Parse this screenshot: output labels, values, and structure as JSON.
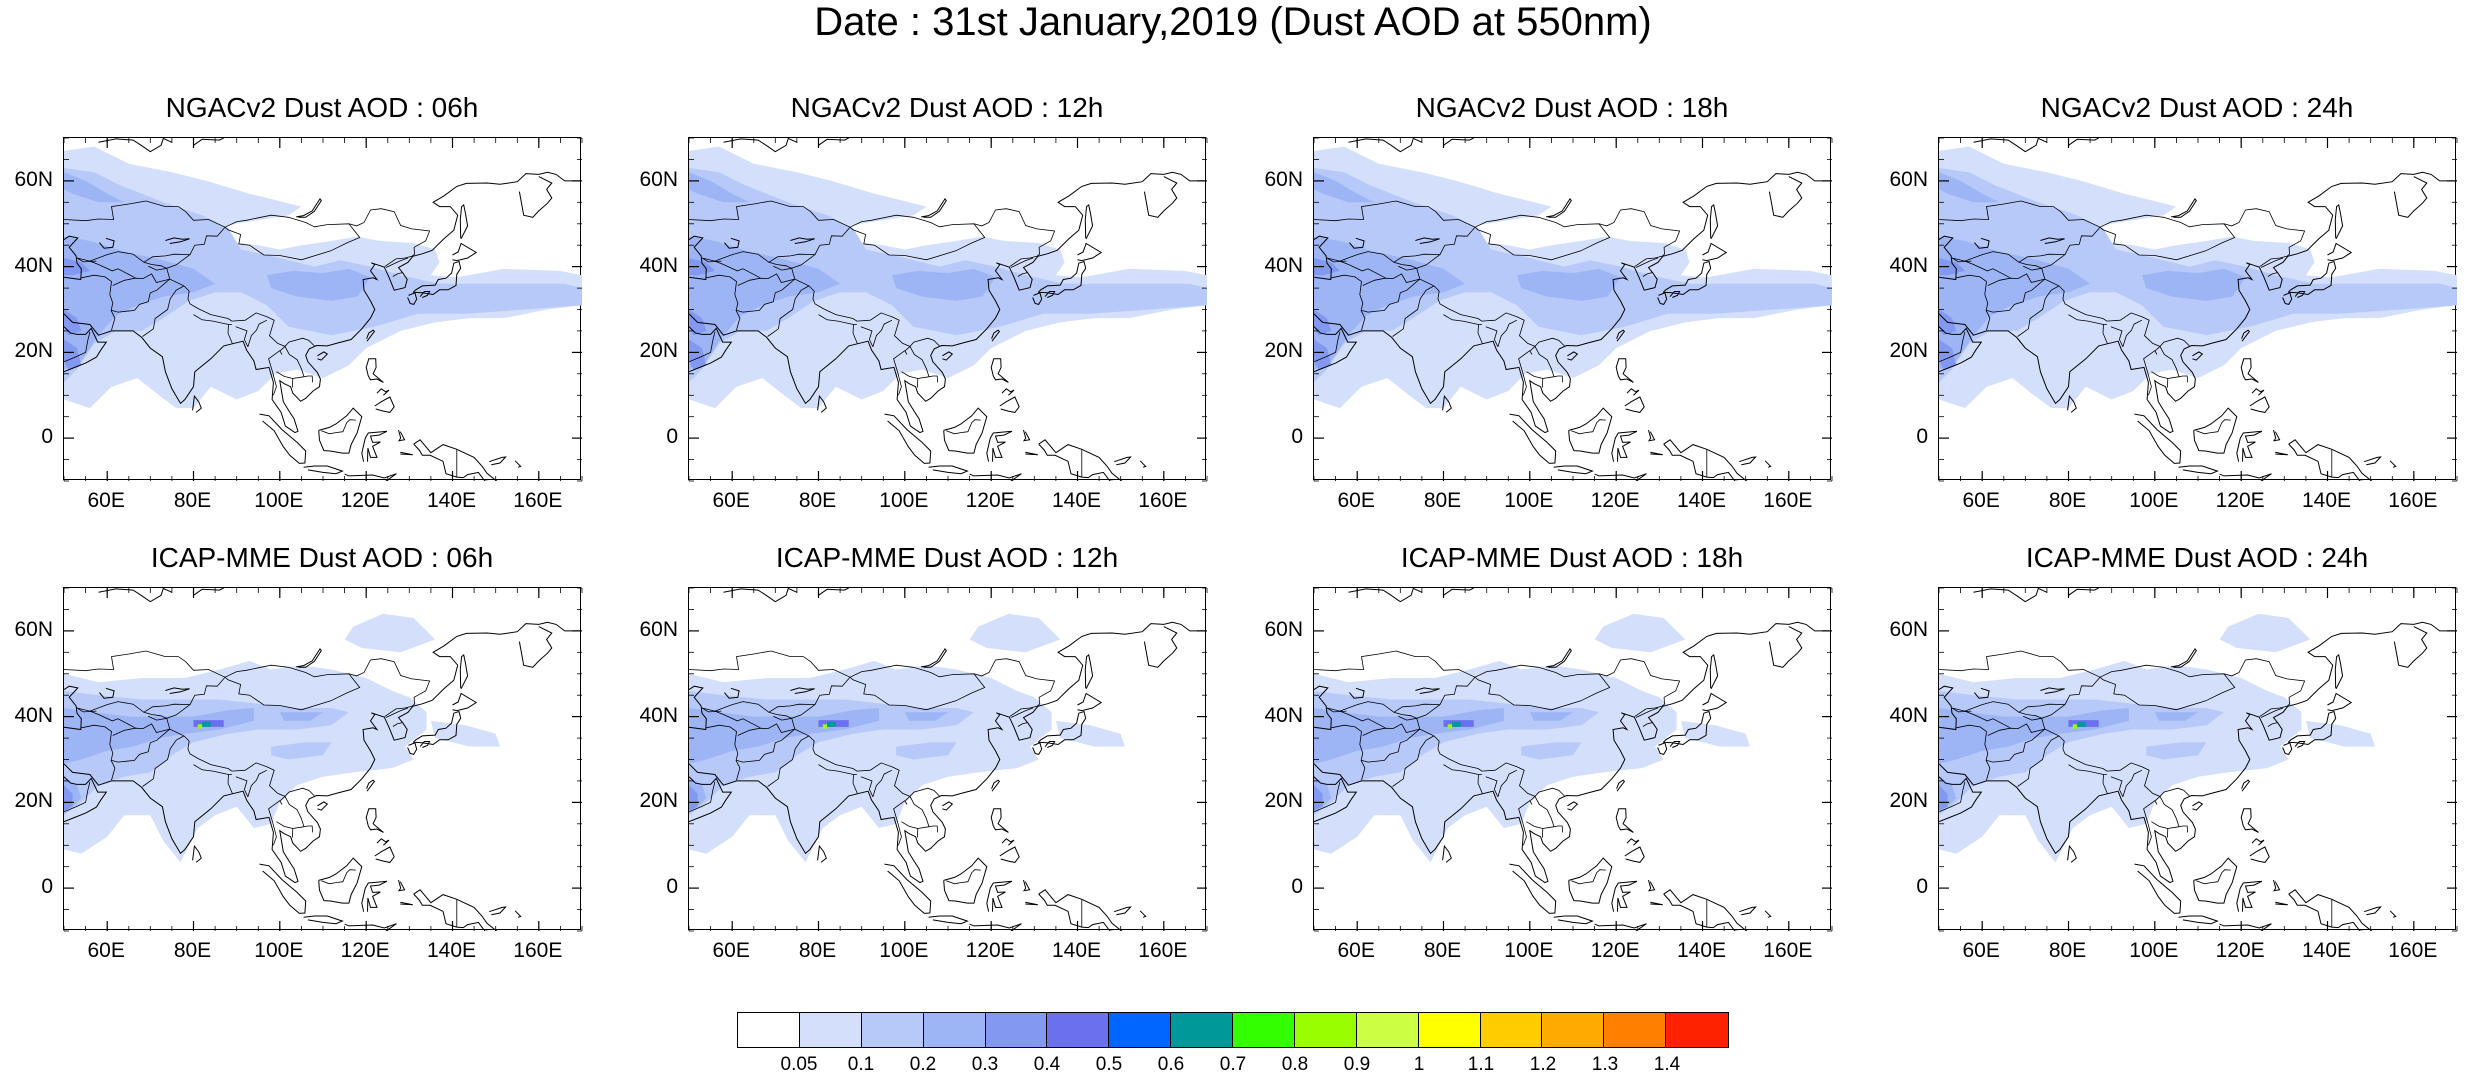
{
  "title": "Date : 31st January,2019 (Dust AOD at 550nm)",
  "panels": [
    {
      "title": "NGACv2 Dust AOD : 06h",
      "model": "ngac",
      "hour": "06"
    },
    {
      "title": "NGACv2 Dust AOD : 12h",
      "model": "ngac",
      "hour": "12"
    },
    {
      "title": "NGACv2 Dust AOD : 18h",
      "model": "ngac",
      "hour": "18"
    },
    {
      "title": "NGACv2 Dust AOD : 24h",
      "model": "ngac",
      "hour": "24"
    },
    {
      "title": "ICAP-MME Dust AOD : 06h",
      "model": "icap",
      "hour": "06"
    },
    {
      "title": "ICAP-MME Dust AOD : 12h",
      "model": "icap",
      "hour": "12"
    },
    {
      "title": "ICAP-MME Dust AOD : 18h",
      "model": "icap",
      "hour": "18"
    },
    {
      "title": "ICAP-MME Dust AOD : 24h",
      "model": "icap",
      "hour": "24"
    }
  ],
  "map": {
    "lon_range": [
      50,
      170
    ],
    "lat_range": [
      -10,
      70
    ],
    "x_ticks": [
      "60E",
      "80E",
      "100E",
      "120E",
      "140E",
      "160E"
    ],
    "x_tick_values": [
      60,
      80,
      100,
      120,
      140,
      160
    ],
    "y_ticks": [
      "0",
      "20N",
      "40N",
      "60N"
    ],
    "y_tick_values": [
      0,
      20,
      40,
      60
    ]
  },
  "colorbar": {
    "colors": [
      "#ffffff",
      "#d4e0fb",
      "#b7c9f8",
      "#9db5f5",
      "#8398f1",
      "#6a70ee",
      "#0066ff",
      "#009999",
      "#33ff00",
      "#99ff00",
      "#ccff44",
      "#ffff00",
      "#ffcc00",
      "#ffaa00",
      "#ff7f00",
      "#ff2200"
    ],
    "labels": [
      "0.05",
      "0.1",
      "0.2",
      "0.3",
      "0.4",
      "0.5",
      "0.6",
      "0.7",
      "0.8",
      "0.9",
      "1",
      "1.1",
      "1.2",
      "1.3",
      "1.4"
    ]
  }
}
